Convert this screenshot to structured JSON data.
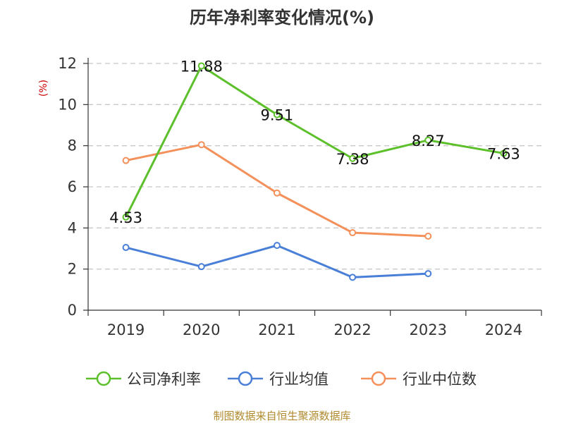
{
  "chart_data": {
    "type": "line",
    "title": "历年净利率变化情况(%)",
    "ylabel": "(%)",
    "xlabel": "",
    "categories": [
      "2019",
      "2020",
      "2021",
      "2022",
      "2023",
      "2024"
    ],
    "ylim": [
      0,
      12
    ],
    "yticks": [
      0,
      2,
      4,
      6,
      8,
      10,
      12
    ],
    "grid": true,
    "legend_position": "bottom",
    "series": [
      {
        "name": "公司净利率",
        "color": "#5cc02a",
        "values": [
          4.53,
          11.88,
          9.51,
          7.38,
          8.27,
          7.63
        ],
        "labels": [
          "4.53",
          "11.88",
          "9.51",
          "7.38",
          "8.27",
          "7.63"
        ]
      },
      {
        "name": "行业均值",
        "color": "#4a7fd8",
        "values": [
          3.05,
          2.12,
          3.15,
          1.6,
          1.78,
          null
        ]
      },
      {
        "name": "行业中位数",
        "color": "#f4905a",
        "values": [
          7.28,
          8.05,
          5.7,
          3.77,
          3.6,
          null
        ]
      }
    ]
  },
  "source": "制图数据来自恒生聚源数据库"
}
